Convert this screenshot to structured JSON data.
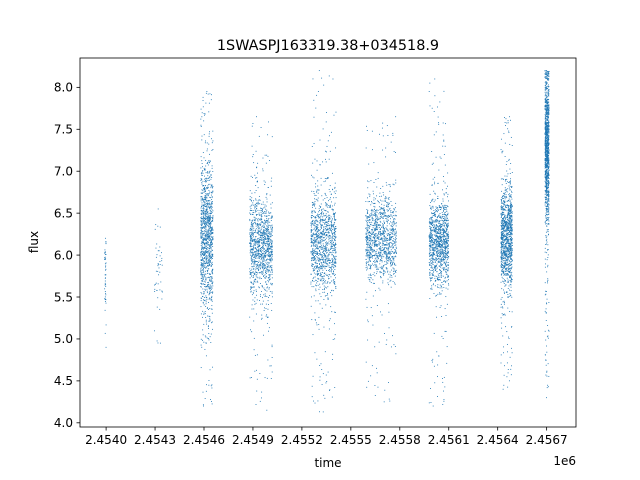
{
  "chart_data": {
    "type": "scatter",
    "title": "1SWASPJ163319.38+034518.9",
    "xlabel": "time",
    "ylabel": "flux",
    "x_offset_label": "1e6",
    "xlim": [
      2453840,
      2456880
    ],
    "ylim": [
      3.95,
      8.35
    ],
    "x_ticks": [
      2454000,
      2454300,
      2454600,
      2454900,
      2455200,
      2455500,
      2455800,
      2456100,
      2456400,
      2456700
    ],
    "x_tick_labels": [
      "2.4540",
      "2.4543",
      "2.4546",
      "2.4549",
      "2.4552",
      "2.4555",
      "2.4558",
      "2.4561",
      "2.4564",
      "2.4567"
    ],
    "y_ticks": [
      4.0,
      4.5,
      5.0,
      5.5,
      6.0,
      6.5,
      7.0,
      7.5,
      8.0
    ],
    "y_tick_labels": [
      "4.0",
      "4.5",
      "5.0",
      "5.5",
      "6.0",
      "6.5",
      "7.0",
      "7.5",
      "8.0"
    ],
    "grid": false,
    "marker_color": "#1f77b4",
    "series": [
      {
        "name": "",
        "seasons": [
          {
            "x_range": [
              2453990,
              2454000
            ],
            "y_center": 5.7,
            "y_spread": 0.3,
            "y_range": [
              4.9,
              6.2
            ],
            "density": "sparse"
          },
          {
            "x_range": [
              2454295,
              2454345
            ],
            "y_center": 5.8,
            "y_spread": 0.3,
            "y_range": [
              4.95,
              6.55
            ],
            "density": "sparse"
          },
          {
            "x_range": [
              2454580,
              2454655
            ],
            "y_center": 6.2,
            "y_spread": 0.45,
            "y_range": [
              4.2,
              7.95
            ],
            "density": "dense"
          },
          {
            "x_range": [
              2454880,
              2455020
            ],
            "y_center": 6.1,
            "y_spread": 0.3,
            "y_range": [
              4.15,
              7.65
            ],
            "density": "dense"
          },
          {
            "x_range": [
              2455255,
              2455410
            ],
            "y_center": 6.15,
            "y_spread": 0.3,
            "y_range": [
              4.13,
              8.2
            ],
            "density": "dense"
          },
          {
            "x_range": [
              2455590,
              2455780
            ],
            "y_center": 6.2,
            "y_spread": 0.25,
            "y_range": [
              4.25,
              7.65
            ],
            "density": "dense"
          },
          {
            "x_range": [
              2455980,
              2456100
            ],
            "y_center": 6.15,
            "y_spread": 0.25,
            "y_range": [
              4.2,
              8.1
            ],
            "density": "dense"
          },
          {
            "x_range": [
              2456420,
              2456490
            ],
            "y_center": 6.2,
            "y_spread": 0.3,
            "y_range": [
              4.4,
              7.65
            ],
            "density": "dense"
          },
          {
            "x_range": [
              2456690,
              2456715
            ],
            "y_center": 7.3,
            "y_spread": 0.45,
            "y_range": [
              4.3,
              8.2
            ],
            "density": "dense"
          }
        ]
      }
    ]
  }
}
